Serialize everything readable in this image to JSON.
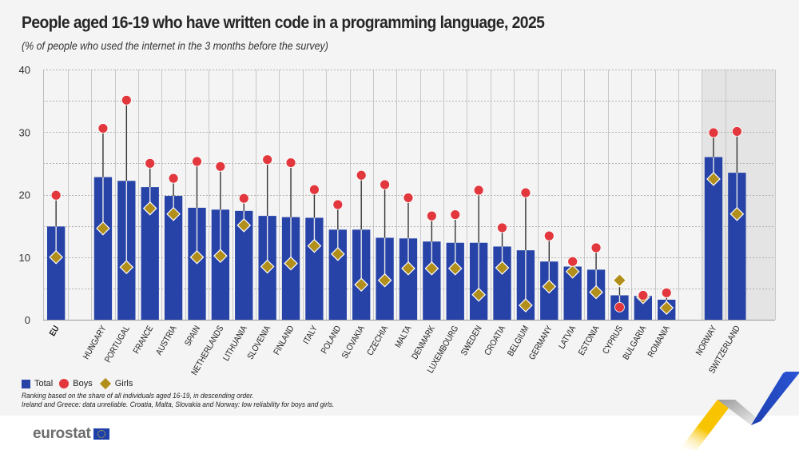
{
  "header": {
    "title": "People aged 16-19 who have written code in a programming language, 2025",
    "subtitle": "(% of people who used the internet in the 3 months before the survey)"
  },
  "legend": {
    "total": "Total",
    "boys": "Boys",
    "girls": "Girls"
  },
  "notes": {
    "line1": "Ranking based on the share of all individuals aged 16-19, in descending order.",
    "line2": "Ireland and Greece: data unreliable. Croatia, Malta, Slovakia and Norway: low reliability for boys and girls."
  },
  "footer": {
    "logo_text": "eurostat"
  },
  "colors": {
    "total": "#2743a8",
    "boys": "#e2373d",
    "girls": "#b28f1b",
    "background": "#f4f4f4",
    "highlight_band": "#e4e4e4"
  },
  "chart_data": {
    "type": "bar",
    "title": "People aged 16-19 who have written code in a programming language, 2025",
    "subtitle": "(% of people who used the internet in the 3 months before the survey)",
    "xlabel": "",
    "ylabel": "",
    "ylim": [
      0,
      40
    ],
    "yticks": [
      0,
      10,
      20,
      30,
      40
    ],
    "grid": true,
    "legend_position": "bottom-left",
    "categories": [
      "EU",
      "",
      "HUNGARY",
      "PORTUGAL",
      "FRANCE",
      "AUSTRIA",
      "SPAIN",
      "NETHERLANDS",
      "LITHUANIA",
      "SLOVENIA",
      "FINLAND",
      "ITALY",
      "POLAND",
      "SLOVAKIA",
      "CZECHIA",
      "MALTA",
      "DENMARK",
      "LUXEMBOURG",
      "SWEDEN",
      "CROATIA",
      "BELGIUM",
      "GERMANY",
      "LATVIA",
      "ESTONIA",
      "CYPRUS",
      "BULGARIA",
      "ROMANIA",
      "",
      "NORWAY",
      "SWITZERLAND"
    ],
    "highlighted_categories": [
      "NORWAY",
      "SWITZERLAND"
    ],
    "bold_categories": [
      "EU"
    ],
    "series": [
      {
        "name": "Total",
        "mark": "bar",
        "values": [
          14.9,
          null,
          22.8,
          22.2,
          21.2,
          19.8,
          17.9,
          17.6,
          17.4,
          16.6,
          16.4,
          16.3,
          14.4,
          14.4,
          13.1,
          13.0,
          12.5,
          12.3,
          12.3,
          11.7,
          11.1,
          9.3,
          8.5,
          8.0,
          3.9,
          3.8,
          3.2,
          null,
          26.0,
          23.5
        ]
      },
      {
        "name": "Boys",
        "mark": "circle",
        "values": [
          19.9,
          null,
          30.6,
          35.1,
          25.0,
          22.6,
          25.3,
          24.5,
          19.4,
          25.6,
          25.1,
          20.8,
          18.4,
          23.1,
          21.6,
          19.5,
          16.6,
          16.8,
          20.7,
          14.7,
          20.3,
          13.4,
          9.3,
          11.5,
          2.0,
          3.9,
          4.3,
          null,
          29.9,
          30.1
        ]
      },
      {
        "name": "Girls",
        "mark": "diamond",
        "values": [
          10.0,
          null,
          14.6,
          8.4,
          17.8,
          16.9,
          10.0,
          10.2,
          15.1,
          8.5,
          9.0,
          11.8,
          10.5,
          5.6,
          6.3,
          8.2,
          8.2,
          8.2,
          4.0,
          8.3,
          2.3,
          5.3,
          7.7,
          4.4,
          6.3,
          3.6,
          1.9,
          null,
          22.5,
          16.9
        ]
      }
    ]
  }
}
